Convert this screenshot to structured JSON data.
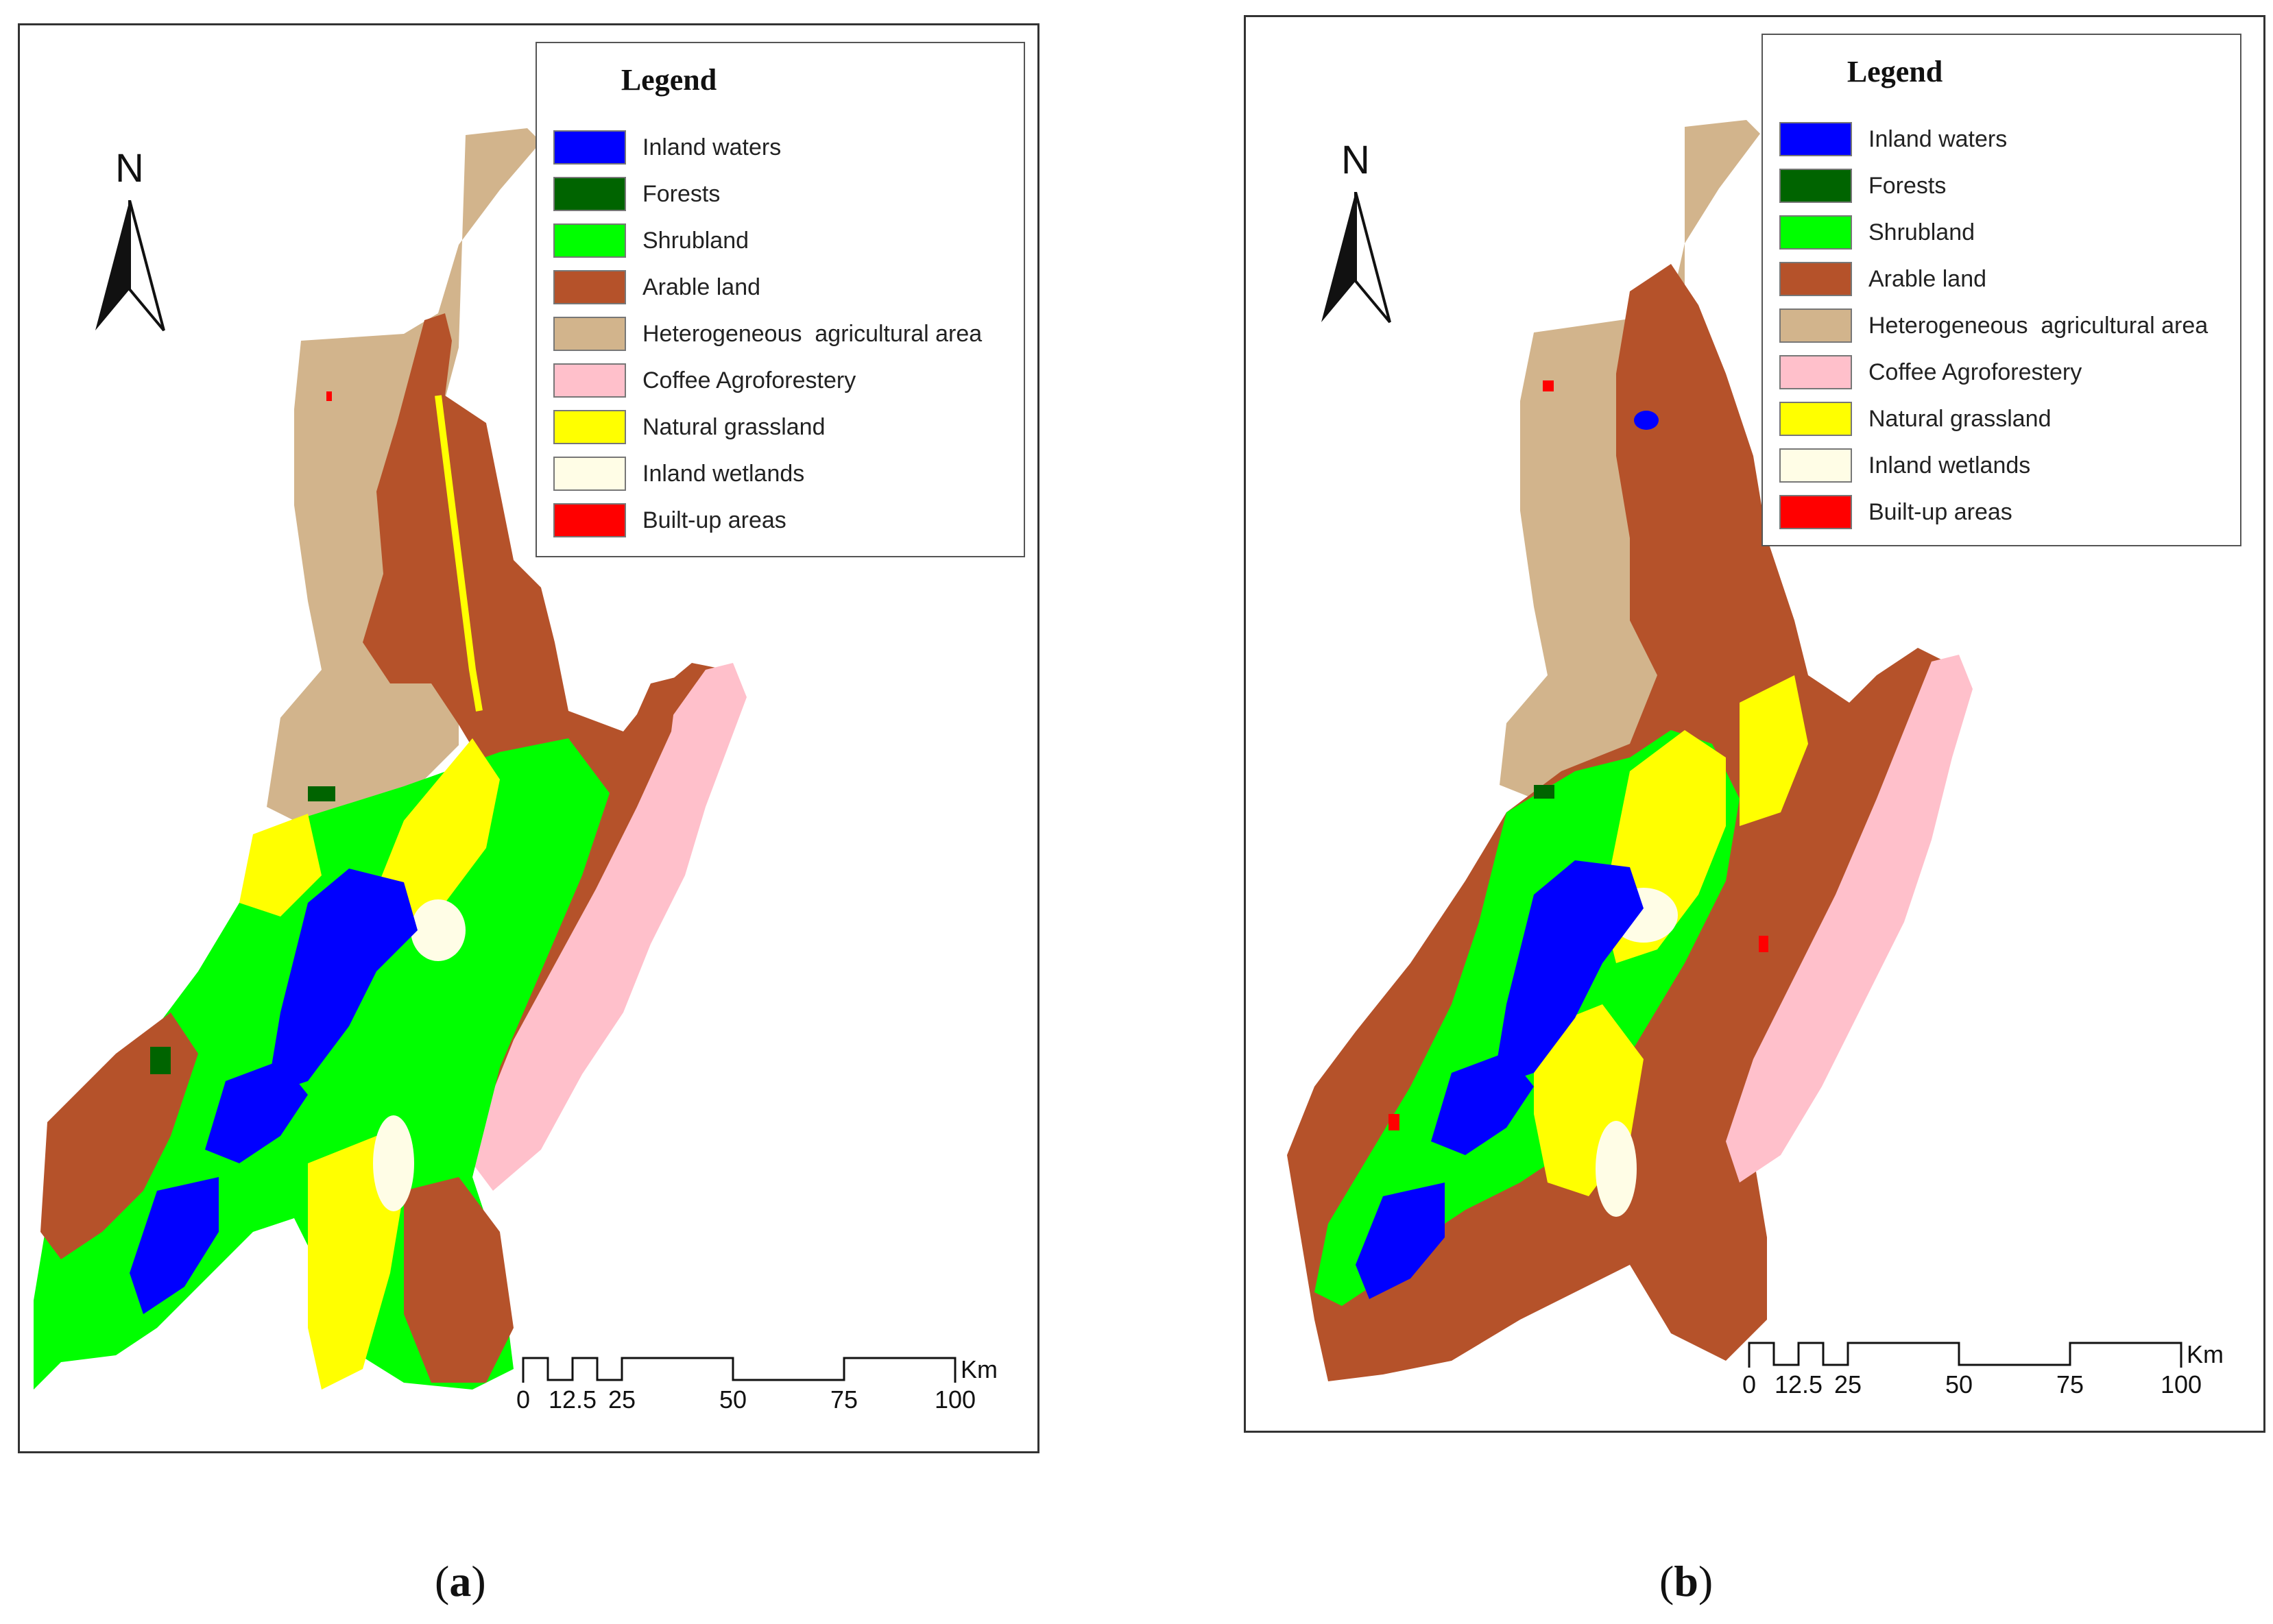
{
  "legend": {
    "title": "Legend",
    "items": [
      {
        "label": "Inland waters",
        "color": "#0000ff"
      },
      {
        "label": "Forests",
        "color": "#006400"
      },
      {
        "label": "Shrubland",
        "color": "#00ff00"
      },
      {
        "label": "Arable land",
        "color": "#b5522a"
      },
      {
        "label": "Heterogeneous  agricultural area",
        "color": "#d2b48c"
      },
      {
        "label": "Coffee Agroforestery",
        "color": "#ffc0cb"
      },
      {
        "label": "Natural grassland",
        "color": "#ffff00"
      },
      {
        "label": "Inland wetlands",
        "color": "#fffde6"
      },
      {
        "label": "Built-up areas",
        "color": "#ff0000"
      }
    ]
  },
  "north_arrow": {
    "letter": "N"
  },
  "scale_bar": {
    "labels": [
      "0",
      "12.5",
      "25",
      "50",
      "75",
      "100"
    ],
    "unit": "Km"
  },
  "panels": [
    {
      "id": "a",
      "caption_open": "(",
      "caption_letter": "a",
      "caption_close": ")"
    },
    {
      "id": "b",
      "caption_open": "(",
      "caption_letter": "b",
      "caption_close": ")"
    }
  ]
}
